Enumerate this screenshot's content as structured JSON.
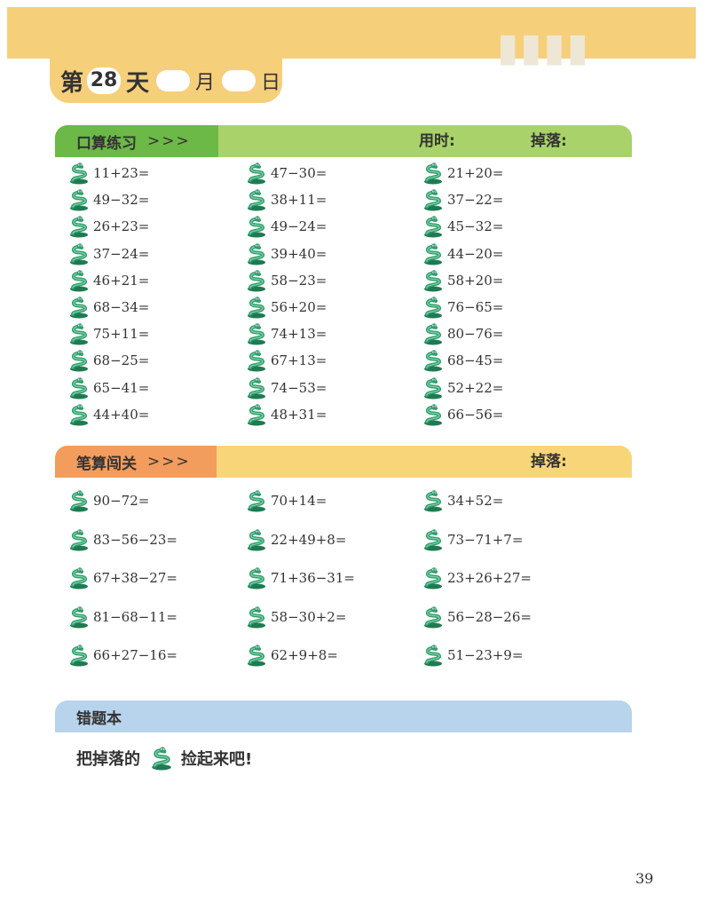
{
  "header": {
    "day_prefix": "第",
    "day_number": "28",
    "day_suffix": "天",
    "month_label": "月",
    "day_label": "日"
  },
  "section_oral": {
    "title": "口算练习",
    "chevrons": ">>>",
    "time_label": "用时:",
    "dropped_label": "掉落:",
    "columns": [
      [
        "11+23=",
        "49−32=",
        "26+23=",
        "37−24=",
        "46+21=",
        "68−34=",
        "75+11=",
        "68−25=",
        "65−41=",
        "44+40="
      ],
      [
        "47−30=",
        "38+11=",
        "49−24=",
        "39+40=",
        "58−23=",
        "56+20=",
        "74+13=",
        "67+13=",
        "74−53=",
        "48+31="
      ],
      [
        "21+20=",
        "37−22=",
        "45−32=",
        "44−20=",
        "58+20=",
        "76−65=",
        "80−76=",
        "68−45=",
        "52+22=",
        "66−56="
      ]
    ]
  },
  "section_written": {
    "title": "笔算闯关",
    "chevrons": ">>>",
    "dropped_label": "掉落:",
    "columns": [
      [
        "90−72=",
        "83−56−23=",
        "67+38−27=",
        "81−68−11=",
        "66+27−16="
      ],
      [
        "70+14=",
        "22+49+8=",
        "71+36−31=",
        "58−30+2=",
        "62+9+8="
      ],
      [
        "34+52=",
        "73−71+7=",
        "23+26+27=",
        "56−28−26=",
        "51−23+9="
      ]
    ]
  },
  "section_mistakes": {
    "title": "错题本",
    "note_before": "把掉落的",
    "note_after": "捡起来吧!"
  },
  "page_number": "39",
  "colors": {
    "top_band": "#f6cf7a",
    "oral_label": "#6cb947",
    "oral_bar": "#a9d36a",
    "written_label": "#f29c5d",
    "written_bar": "#f9d57a",
    "mistakes_bar": "#b8d3ec",
    "snake_icon": "#2f9e6e"
  },
  "icons": {
    "item_marker": "snake-icon"
  }
}
